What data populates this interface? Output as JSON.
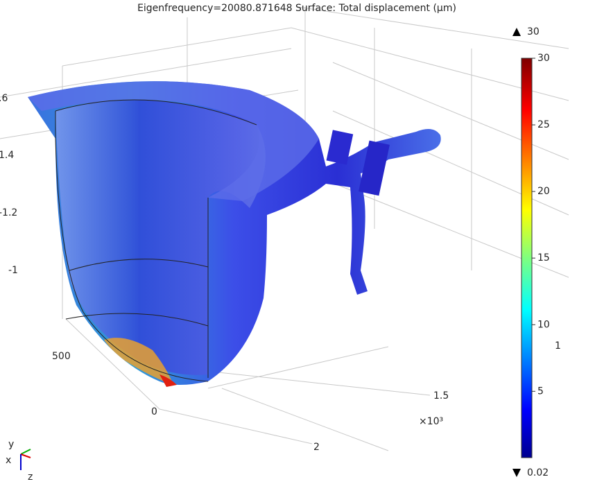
{
  "title": "Eigenfrequency=20080.871648   Surface: Total displacement (µm)",
  "colorbar": {
    "max": 30,
    "min": 0.02,
    "ticks": [
      30,
      25,
      20,
      15,
      10,
      5
    ]
  },
  "axis_labels": [
    ".6",
    "1.4",
    "-1.2",
    "-1",
    "500",
    "0",
    "1.5",
    "×10³",
    "2",
    "1"
  ],
  "triad": [
    "y",
    "x",
    "z"
  ]
}
